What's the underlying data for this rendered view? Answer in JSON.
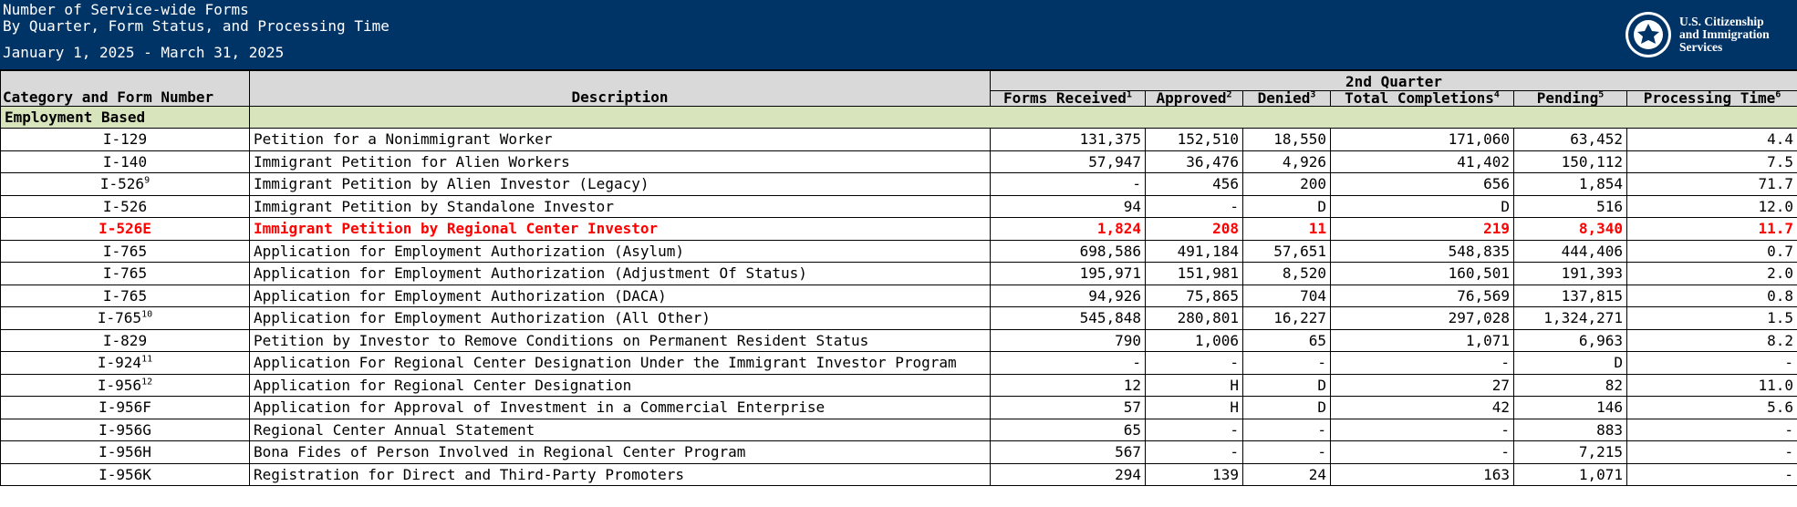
{
  "header": {
    "title_line1": "Number of Service-wide Forms",
    "title_line2": "By Quarter, Form Status, and Processing Time",
    "date_range": "January 1, 2025 - March 31, 2025",
    "agency": [
      "U.S. Citizenship",
      "and Immigration",
      "Services"
    ],
    "bg_color": "#003366"
  },
  "table": {
    "headers": {
      "category": "Category and Form Number",
      "description": "Description",
      "quarter": "2nd Quarter",
      "forms_received": "Forms Received",
      "forms_received_note": "1",
      "approved": "Approved",
      "approved_note": "2",
      "denied": "Denied",
      "denied_note": "3",
      "total_completions": "Total Completions",
      "total_completions_note": "4",
      "pending": "Pending",
      "pending_note": "5",
      "processing_time": "Processing Time",
      "processing_time_note": "6"
    },
    "section": "Employment Based",
    "highlight_color": "#ff0000",
    "rows": [
      {
        "form": "I-129",
        "note": "",
        "desc": "Petition for a Nonimmigrant Worker",
        "received": "131,375",
        "approved": "152,510",
        "denied": "18,550",
        "completions": "171,060",
        "pending": "63,452",
        "time": "4.4"
      },
      {
        "form": "I-140",
        "note": "",
        "desc": "Immigrant Petition for Alien Workers",
        "received": "57,947",
        "approved": "36,476",
        "denied": "4,926",
        "completions": "41,402",
        "pending": "150,112",
        "time": "7.5"
      },
      {
        "form": "I-526",
        "note": "9",
        "desc": "Immigrant Petition by Alien Investor (Legacy)",
        "received": "-",
        "approved": "456",
        "denied": "200",
        "completions": "656",
        "pending": "1,854",
        "time": "71.7"
      },
      {
        "form": "I-526",
        "note": "",
        "desc": "Immigrant Petition by Standalone Investor",
        "received": "94",
        "approved": "-",
        "denied": "D",
        "completions": "D",
        "pending": "516",
        "time": "12.0"
      },
      {
        "form": "I-526E",
        "note": "",
        "desc": "Immigrant Petition by Regional Center Investor",
        "received": "1,824",
        "approved": "208",
        "denied": "11",
        "completions": "219",
        "pending": "8,340",
        "time": "11.7"
      },
      {
        "form": "I-765",
        "note": "",
        "desc": "Application for Employment Authorization (Asylum)",
        "received": "698,586",
        "approved": "491,184",
        "denied": "57,651",
        "completions": "548,835",
        "pending": "444,406",
        "time": "0.7"
      },
      {
        "form": "I-765",
        "note": "",
        "desc": "Application for Employment Authorization (Adjustment Of Status)",
        "received": "195,971",
        "approved": "151,981",
        "denied": "8,520",
        "completions": "160,501",
        "pending": "191,393",
        "time": "2.0"
      },
      {
        "form": "I-765",
        "note": "",
        "desc": "Application for Employment Authorization (DACA)",
        "received": "94,926",
        "approved": "75,865",
        "denied": "704",
        "completions": "76,569",
        "pending": "137,815",
        "time": "0.8"
      },
      {
        "form": "I-765",
        "note": "10",
        "desc": "Application for Employment Authorization (All Other)",
        "received": "545,848",
        "approved": "280,801",
        "denied": "16,227",
        "completions": "297,028",
        "pending": "1,324,271",
        "time": "1.5"
      },
      {
        "form": "I-829",
        "note": "",
        "desc": "Petition by Investor to Remove Conditions on Permanent Resident Status",
        "received": "790",
        "approved": "1,006",
        "denied": "65",
        "completions": "1,071",
        "pending": "6,963",
        "time": "8.2"
      },
      {
        "form": "I-924",
        "note": "11",
        "desc": "Application For Regional Center Designation Under the Immigrant Investor Program",
        "received": "-",
        "approved": "-",
        "denied": "-",
        "completions": "-",
        "pending": "D",
        "time": "-"
      },
      {
        "form": "I-956",
        "note": "12",
        "desc": "Application for Regional Center Designation",
        "received": "12",
        "approved": "H",
        "denied": "D",
        "completions": "27",
        "pending": "82",
        "time": "11.0"
      },
      {
        "form": "I-956F",
        "note": "",
        "desc": "Application for Approval of Investment in a Commercial Enterprise",
        "received": "57",
        "approved": "H",
        "denied": "D",
        "completions": "42",
        "pending": "146",
        "time": "5.6"
      },
      {
        "form": "I-956G",
        "note": "",
        "desc": "Regional Center Annual Statement",
        "received": "65",
        "approved": "-",
        "denied": "-",
        "completions": "-",
        "pending": "883",
        "time": "-"
      },
      {
        "form": "I-956H",
        "note": "",
        "desc": "Bona Fides of Person Involved in Regional Center Program",
        "received": "567",
        "approved": "-",
        "denied": "-",
        "completions": "-",
        "pending": "7,215",
        "time": "-"
      },
      {
        "form": "I-956K",
        "note": "",
        "desc": "Registration for Direct and Third-Party Promoters",
        "received": "294",
        "approved": "139",
        "denied": "24",
        "completions": "163",
        "pending": "1,071",
        "time": "-"
      }
    ]
  }
}
